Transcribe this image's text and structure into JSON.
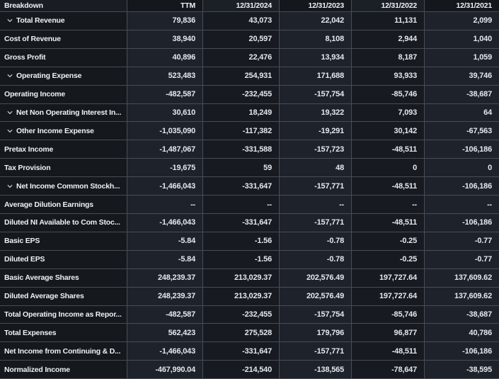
{
  "table": {
    "columns": [
      "Breakdown",
      "TTM",
      "12/31/2024",
      "12/31/2023",
      "12/31/2022",
      "12/31/2021"
    ],
    "rows": [
      {
        "label": "Total Revenue",
        "expandable": true,
        "values": [
          "79,836",
          "43,073",
          "22,042",
          "11,131",
          "2,099"
        ]
      },
      {
        "label": "Cost of Revenue",
        "expandable": false,
        "values": [
          "38,940",
          "20,597",
          "8,108",
          "2,944",
          "1,040"
        ]
      },
      {
        "label": "Gross Profit",
        "expandable": false,
        "values": [
          "40,896",
          "22,476",
          "13,934",
          "8,187",
          "1,059"
        ]
      },
      {
        "label": "Operating Expense",
        "expandable": true,
        "values": [
          "523,483",
          "254,931",
          "171,688",
          "93,933",
          "39,746"
        ]
      },
      {
        "label": "Operating Income",
        "expandable": false,
        "values": [
          "-482,587",
          "-232,455",
          "-157,754",
          "-85,746",
          "-38,687"
        ]
      },
      {
        "label": "Net Non Operating Interest In...",
        "expandable": true,
        "values": [
          "30,610",
          "18,249",
          "19,322",
          "7,093",
          "64"
        ]
      },
      {
        "label": "Other Income Expense",
        "expandable": true,
        "values": [
          "-1,035,090",
          "-117,382",
          "-19,291",
          "30,142",
          "-67,563"
        ]
      },
      {
        "label": "Pretax Income",
        "expandable": false,
        "values": [
          "-1,487,067",
          "-331,588",
          "-157,723",
          "-48,511",
          "-106,186"
        ]
      },
      {
        "label": "Tax Provision",
        "expandable": false,
        "values": [
          "-19,675",
          "59",
          "48",
          "0",
          "0"
        ]
      },
      {
        "label": "Net Income Common Stockh...",
        "expandable": true,
        "values": [
          "-1,466,043",
          "-331,647",
          "-157,771",
          "-48,511",
          "-106,186"
        ]
      },
      {
        "label": "Average Dilution Earnings",
        "expandable": false,
        "values": [
          "--",
          "--",
          "--",
          "--",
          "--"
        ]
      },
      {
        "label": "Diluted NI Available to Com Stoc...",
        "expandable": false,
        "values": [
          "-1,466,043",
          "-331,647",
          "-157,771",
          "-48,511",
          "-106,186"
        ]
      },
      {
        "label": "Basic EPS",
        "expandable": false,
        "values": [
          "-5.84",
          "-1.56",
          "-0.78",
          "-0.25",
          "-0.77"
        ]
      },
      {
        "label": "Diluted EPS",
        "expandable": false,
        "values": [
          "-5.84",
          "-1.56",
          "-0.78",
          "-0.25",
          "-0.77"
        ]
      },
      {
        "label": "Basic Average Shares",
        "expandable": false,
        "values": [
          "248,239.37",
          "213,029.37",
          "202,576.49",
          "197,727.64",
          "137,609.62"
        ]
      },
      {
        "label": "Diluted Average Shares",
        "expandable": false,
        "values": [
          "248,239.37",
          "213,029.37",
          "202,576.49",
          "197,727.64",
          "137,609.62"
        ]
      },
      {
        "label": "Total Operating Income as Repor...",
        "expandable": false,
        "values": [
          "-482,587",
          "-232,455",
          "-157,754",
          "-85,746",
          "-38,687"
        ]
      },
      {
        "label": "Total Expenses",
        "expandable": false,
        "values": [
          "562,423",
          "275,528",
          "179,796",
          "96,877",
          "40,786"
        ]
      },
      {
        "label": "Net Income from Continuing & D...",
        "expandable": false,
        "values": [
          "-1,466,043",
          "-331,647",
          "-157,771",
          "-48,511",
          "-106,186"
        ]
      },
      {
        "label": "Normalized Income",
        "expandable": false,
        "values": [
          "-467,990.04",
          "-214,540",
          "-138,565",
          "-78,647",
          "-38,595"
        ]
      }
    ]
  },
  "icons": {
    "expand_chevron": "chevron-down-icon"
  },
  "colors": {
    "label_column_bg": "#15181d",
    "value_column_light_bg": "#1e222a",
    "value_column_dark_bg": "#171a20",
    "header_dark_bg": "#14171c",
    "header_light_bg": "#1b2027",
    "divider": "#474d57",
    "label_text": "#eef1f5",
    "value_text": "#e3e8ee",
    "chevron": "#ccd2d9"
  }
}
